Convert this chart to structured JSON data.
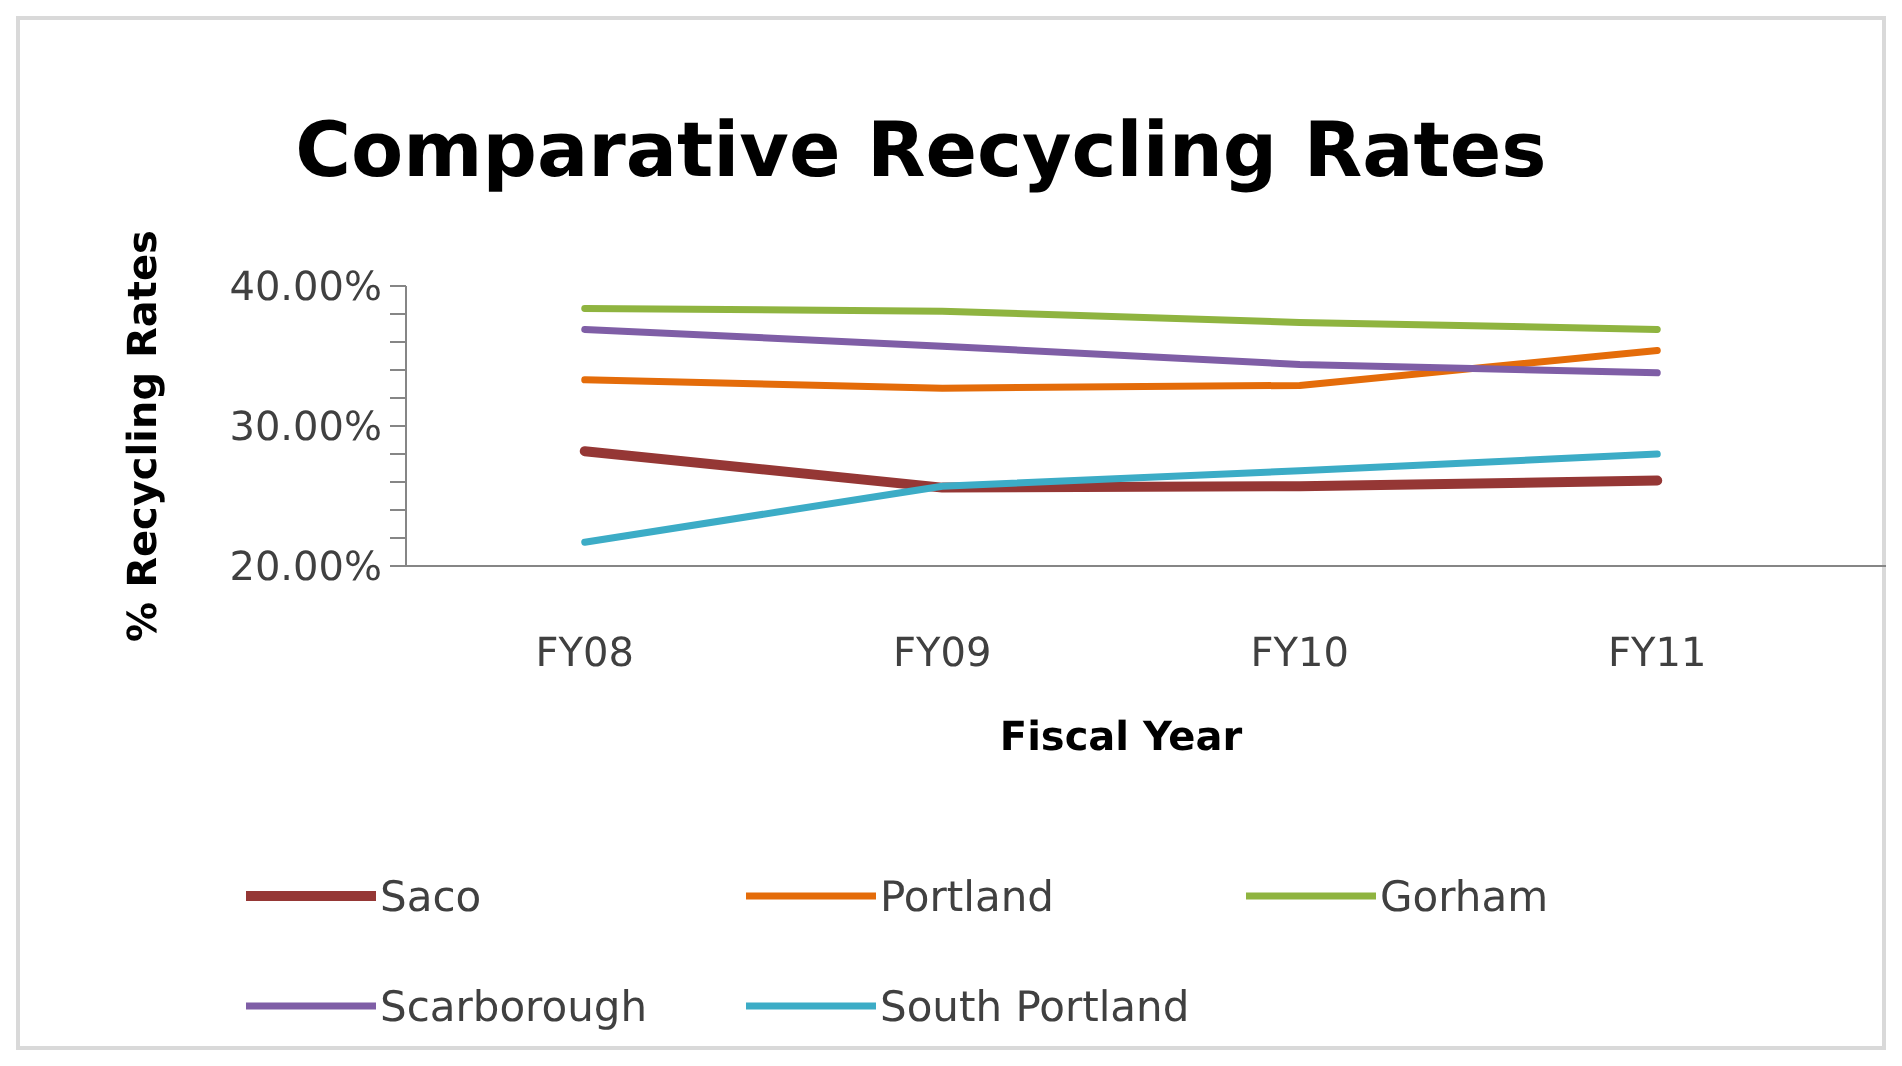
{
  "chart_data": {
    "type": "line",
    "title": "Comparative Recycling Rates",
    "xlabel": "Fiscal Year",
    "ylabel": "% Recycling Rates",
    "categories": [
      "FY08",
      "FY09",
      "FY10",
      "FY11"
    ],
    "series": [
      {
        "name": "Saco",
        "color": "#953735",
        "values": [
          28.2,
          25.6,
          25.7,
          26.1
        ]
      },
      {
        "name": "Portland",
        "color": "#e46c0a",
        "values": [
          33.3,
          32.7,
          32.9,
          35.4
        ]
      },
      {
        "name": "Gorham",
        "color": "#8fb440",
        "values": [
          38.4,
          38.2,
          37.4,
          36.9
        ]
      },
      {
        "name": "Scarborough",
        "color": "#7f5ea6",
        "values": [
          36.9,
          35.7,
          34.4,
          33.8
        ]
      },
      {
        "name": "South Portland",
        "color": "#3cacc6",
        "values": [
          21.7,
          25.7,
          26.8,
          28.0
        ]
      }
    ],
    "ylim": [
      20,
      40
    ],
    "yticks": [
      {
        "value": 20,
        "label": "20.00%"
      },
      {
        "value": 22,
        "label": null
      },
      {
        "value": 24,
        "label": null
      },
      {
        "value": 26,
        "label": null
      },
      {
        "value": 28,
        "label": null
      },
      {
        "value": 30,
        "label": "30.00%"
      },
      {
        "value": 32,
        "label": null
      },
      {
        "value": 34,
        "label": null
      },
      {
        "value": 36,
        "label": null
      },
      {
        "value": 38,
        "label": null
      },
      {
        "value": 40,
        "label": "40.00%"
      }
    ],
    "legend": "bottom",
    "grid": false,
    "marker": "none",
    "line_style": "solid"
  }
}
